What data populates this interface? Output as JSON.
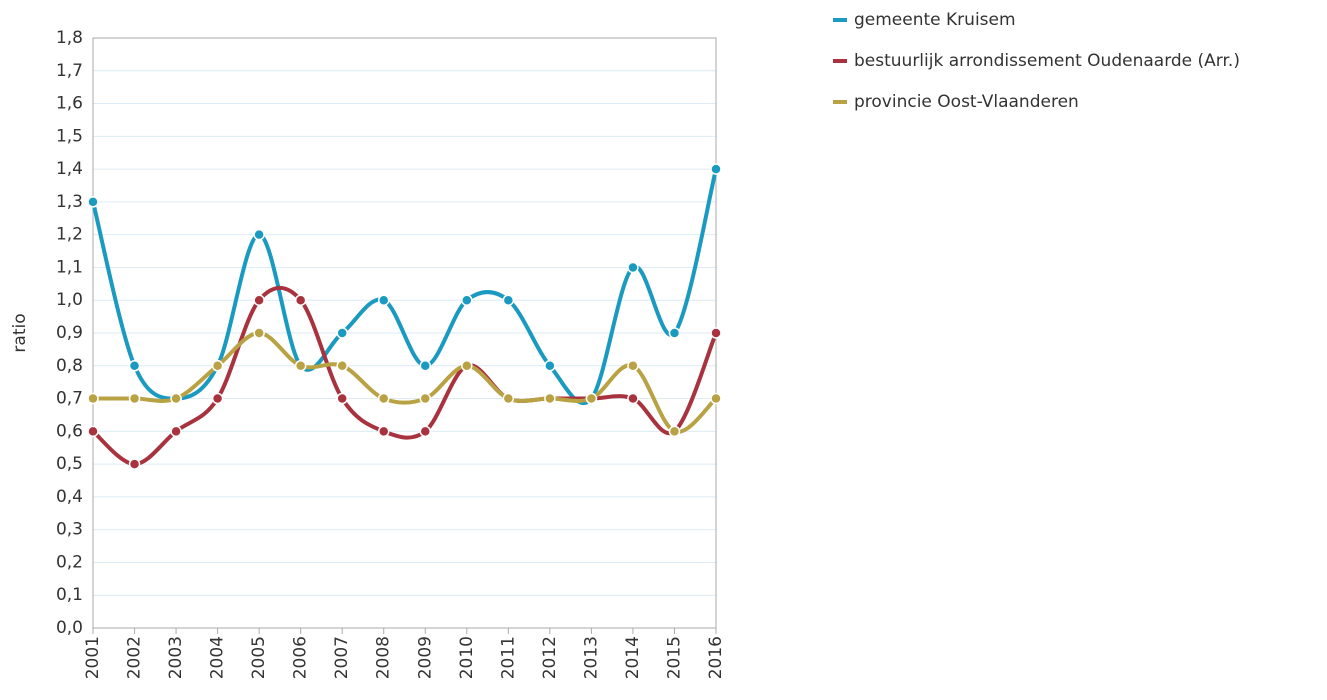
{
  "chart_data": {
    "type": "line",
    "y_label": "ratio",
    "categories": [
      "2001",
      "2002",
      "2003",
      "2004",
      "2005",
      "2006",
      "2007",
      "2008",
      "2009",
      "2010",
      "2011",
      "2012",
      "2013",
      "2014",
      "2015",
      "2016"
    ],
    "series": [
      {
        "name": "gemeente Kruisem",
        "color": "#1b9ac1",
        "values": [
          1.3,
          0.8,
          0.7,
          0.8,
          1.2,
          0.8,
          0.9,
          1.0,
          0.8,
          1.0,
          1.0,
          0.8,
          0.7,
          1.1,
          0.9,
          1.4
        ]
      },
      {
        "name": "bestuurlijk arrondissement Oudenaarde (Arr.)",
        "color": "#a8323e",
        "values": [
          0.6,
          0.5,
          0.6,
          0.7,
          1.0,
          1.0,
          0.7,
          0.6,
          0.6,
          0.8,
          0.7,
          0.7,
          0.7,
          0.7,
          0.6,
          0.9
        ]
      },
      {
        "name": "provincie Oost-Vlaanderen",
        "color": "#b9a244",
        "values": [
          0.7,
          0.7,
          0.7,
          0.8,
          0.9,
          0.8,
          0.8,
          0.7,
          0.7,
          0.8,
          0.7,
          0.7,
          0.7,
          0.8,
          0.6,
          0.7
        ]
      }
    ],
    "ylim": [
      0,
      1.8
    ],
    "yticks": [
      {
        "value": 0,
        "label": "0,0"
      },
      {
        "value": 0.1,
        "label": "0,1"
      },
      {
        "value": 0.2,
        "label": "0,2"
      },
      {
        "value": 0.3,
        "label": "0,3"
      },
      {
        "value": 0.4,
        "label": "0,4"
      },
      {
        "value": 0.5,
        "label": "0,5"
      },
      {
        "value": 0.6,
        "label": "0,6"
      },
      {
        "value": 0.7,
        "label": "0,7"
      },
      {
        "value": 0.8,
        "label": "0,8"
      },
      {
        "value": 0.9,
        "label": "0,9"
      },
      {
        "value": 1.0,
        "label": "1,0"
      },
      {
        "value": 1.1,
        "label": "1,1"
      },
      {
        "value": 1.2,
        "label": "1,2"
      },
      {
        "value": 1.3,
        "label": "1,3"
      },
      {
        "value": 1.4,
        "label": "1,4"
      },
      {
        "value": 1.5,
        "label": "1,5"
      },
      {
        "value": 1.6,
        "label": "1,6"
      },
      {
        "value": 1.7,
        "label": "1,7"
      },
      {
        "value": 1.8,
        "label": "1,8"
      }
    ],
    "grid": true,
    "legend": "top-right"
  }
}
